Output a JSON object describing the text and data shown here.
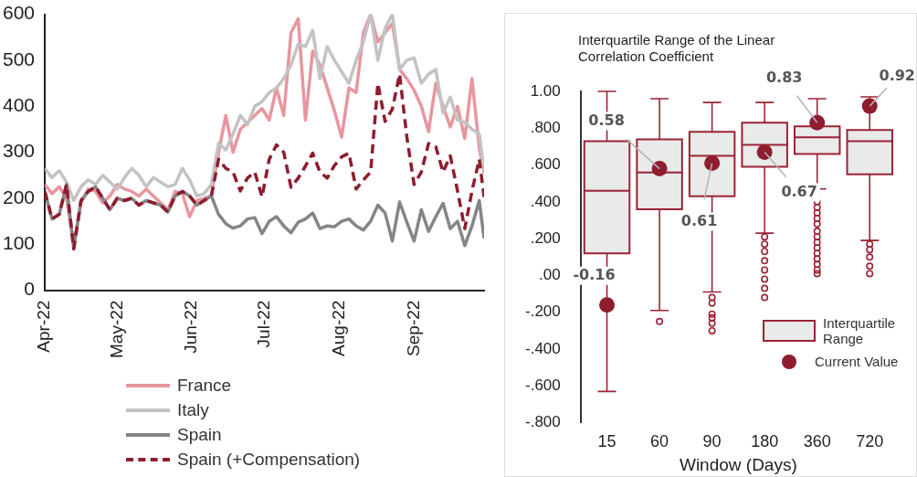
{
  "chart_data": [
    {
      "type": "line",
      "legend": "bottom",
      "x": [
        "2022-04-01",
        "2022-04-04",
        "2022-04-07",
        "2022-04-10",
        "2022-04-13",
        "2022-04-16",
        "2022-04-19",
        "2022-04-22",
        "2022-04-25",
        "2022-04-28",
        "2022-05-01",
        "2022-05-04",
        "2022-05-07",
        "2022-05-10",
        "2022-05-13",
        "2022-05-16",
        "2022-05-19",
        "2022-05-22",
        "2022-05-25",
        "2022-05-28",
        "2022-05-31",
        "2022-06-03",
        "2022-06-06",
        "2022-06-09",
        "2022-06-12",
        "2022-06-15",
        "2022-06-18",
        "2022-06-21",
        "2022-06-24",
        "2022-06-27",
        "2022-06-30",
        "2022-07-03",
        "2022-07-06",
        "2022-07-09",
        "2022-07-12",
        "2022-07-15",
        "2022-07-18",
        "2022-07-21",
        "2022-07-24",
        "2022-07-27",
        "2022-07-30",
        "2022-08-02",
        "2022-08-05",
        "2022-08-08",
        "2022-08-11",
        "2022-08-14",
        "2022-08-17",
        "2022-08-20",
        "2022-08-23",
        "2022-08-26",
        "2022-08-29",
        "2022-09-01",
        "2022-09-04",
        "2022-09-07",
        "2022-09-10",
        "2022-09-13",
        "2022-09-16",
        "2022-09-19",
        "2022-09-22",
        "2022-09-25",
        "2022-09-28",
        "2022-09-30"
      ],
      "xlim": [
        "2022-04-01",
        "2022-09-30"
      ],
      "xticks": [
        {
          "value": "2022-04-01",
          "label": "Apr-22"
        },
        {
          "value": "2022-05-01",
          "label": "May-22"
        },
        {
          "value": "2022-06-01",
          "label": "Jun-22"
        },
        {
          "value": "2022-07-01",
          "label": "Jul-22"
        },
        {
          "value": "2022-08-01",
          "label": "Aug-22"
        },
        {
          "value": "2022-09-01",
          "label": "Sep-22"
        }
      ],
      "ylim": [
        0,
        600
      ],
      "yticks": [
        0,
        100,
        200,
        300,
        400,
        500,
        600
      ],
      "series": [
        {
          "name": "France",
          "color": "#e8969e",
          "values": [
            230,
            210,
            225,
            200,
            100,
            190,
            220,
            215,
            190,
            205,
            230,
            220,
            215,
            205,
            220,
            205,
            190,
            175,
            215,
            210,
            160,
            195,
            200,
            205,
            300,
            380,
            300,
            350,
            365,
            380,
            395,
            370,
            440,
            380,
            560,
            590,
            370,
            520,
            490,
            440,
            390,
            333,
            440,
            430,
            560,
            600,
            540,
            560,
            580,
            480,
            460,
            435,
            400,
            345,
            450,
            400,
            355,
            400,
            330,
            460,
            310,
            255
          ]
        },
        {
          "name": "Italy",
          "color": "#c3c3c3",
          "values": [
            265,
            245,
            260,
            235,
            195,
            225,
            240,
            230,
            250,
            235,
            220,
            245,
            265,
            250,
            225,
            245,
            235,
            225,
            230,
            265,
            240,
            205,
            210,
            230,
            320,
            305,
            340,
            380,
            360,
            400,
            410,
            430,
            440,
            460,
            490,
            535,
            530,
            565,
            460,
            530,
            500,
            475,
            450,
            500,
            540,
            600,
            500,
            570,
            600,
            480,
            500,
            505,
            450,
            470,
            480,
            385,
            420,
            370,
            365,
            350,
            340,
            260
          ]
        },
        {
          "name": "Spain",
          "color": "#858585",
          "values": [
            215,
            155,
            165,
            230,
            90,
            195,
            215,
            225,
            200,
            175,
            200,
            195,
            200,
            185,
            195,
            190,
            185,
            170,
            205,
            215,
            205,
            185,
            195,
            205,
            165,
            145,
            135,
            140,
            155,
            158,
            123,
            150,
            160,
            140,
            125,
            148,
            155,
            168,
            134,
            140,
            138,
            150,
            155,
            140,
            131,
            150,
            185,
            168,
            107,
            192,
            148,
            107,
            175,
            128,
            160,
            189,
            134,
            150,
            97,
            140,
            195,
            113
          ]
        },
        {
          "name": "Spain (+Compensation)",
          "color": "#8e1d2e",
          "line_style": "dashed",
          "values": [
            215,
            155,
            165,
            230,
            90,
            195,
            215,
            225,
            200,
            175,
            200,
            195,
            200,
            185,
            195,
            190,
            185,
            170,
            205,
            215,
            205,
            185,
            195,
            205,
            285,
            265,
            257,
            216,
            244,
            257,
            203,
            285,
            316,
            300,
            224,
            244,
            270,
            298,
            257,
            244,
            271,
            290,
            298,
            220,
            240,
            257,
            450,
            367,
            394,
            470,
            333,
            230,
            257,
            319,
            312,
            257,
            292,
            216,
            134,
            216,
            285,
            203
          ]
        }
      ]
    },
    {
      "type": "box",
      "title": "Interquartile Range of the Linear Correlation Coefficient",
      "xlabel": "Window (Days)",
      "categories": [
        "15",
        "60",
        "90",
        "180",
        "360",
        "720"
      ],
      "ylim": [
        -0.8,
        1.0
      ],
      "yticks": [
        {
          "value": 1.0,
          "label": "1.00"
        },
        {
          "value": 0.8,
          "label": ".800"
        },
        {
          "value": 0.6,
          "label": ".600"
        },
        {
          "value": 0.4,
          "label": ".400"
        },
        {
          "value": 0.2,
          "label": ".200"
        },
        {
          "value": 0,
          "label": ".00"
        },
        {
          "value": -0.2,
          "label": "-.200"
        },
        {
          "value": -0.4,
          "label": "-.400"
        },
        {
          "value": -0.6,
          "label": "-.600"
        },
        {
          "value": -0.8,
          "label": "-.800"
        }
      ],
      "legend": "bottom right",
      "data_labels": true,
      "marker": "circle",
      "series": [
        {
          "name": "Interquartile Range",
          "type": "box",
          "color": "#e9eaea",
          "boxes": [
            {
              "low": -0.63,
              "q1": 0.12,
              "median": 0.46,
              "q3": 0.73,
              "high": 1.0
            },
            {
              "low": -0.19,
              "q1": 0.36,
              "median": 0.56,
              "q3": 0.74,
              "high": 0.96,
              "outliers": [
                -0.25
              ]
            },
            {
              "low": -0.09,
              "q1": 0.43,
              "median": 0.65,
              "q3": 0.78,
              "high": 0.94,
              "outliers": [
                -0.12,
                -0.15,
                -0.21,
                -0.23,
                -0.26,
                -0.3
              ]
            },
            {
              "low": 0.23,
              "q1": 0.59,
              "median": 0.71,
              "q3": 0.83,
              "high": 0.94,
              "outliers": [
                0.21,
                0.17,
                0.13,
                0.08,
                0.03,
                -0.02,
                -0.07,
                -0.12
              ]
            },
            {
              "low": 0.47,
              "q1": 0.66,
              "median": 0.75,
              "q3": 0.81,
              "high": 0.96,
              "outliers": [
                0.4,
                0.37,
                0.34,
                0.31,
                0.28,
                0.24,
                0.21,
                0.18,
                0.15,
                0.12,
                0.09,
                0.06,
                0.03,
                0.01
              ]
            },
            {
              "low": 0.19,
              "q1": 0.55,
              "median": 0.73,
              "q3": 0.79,
              "high": 0.97,
              "outliers": [
                0.17,
                0.14,
                0.1,
                0.05,
                0.01
              ]
            }
          ]
        },
        {
          "name": "Current Value",
          "type": "scatter",
          "color": "#8e1d2e",
          "x": [
            "15",
            "60",
            "90",
            "180",
            "360",
            "720"
          ],
          "values": [
            -0.16,
            0.58,
            0.61,
            0.67,
            0.83,
            0.92
          ]
        }
      ]
    }
  ]
}
